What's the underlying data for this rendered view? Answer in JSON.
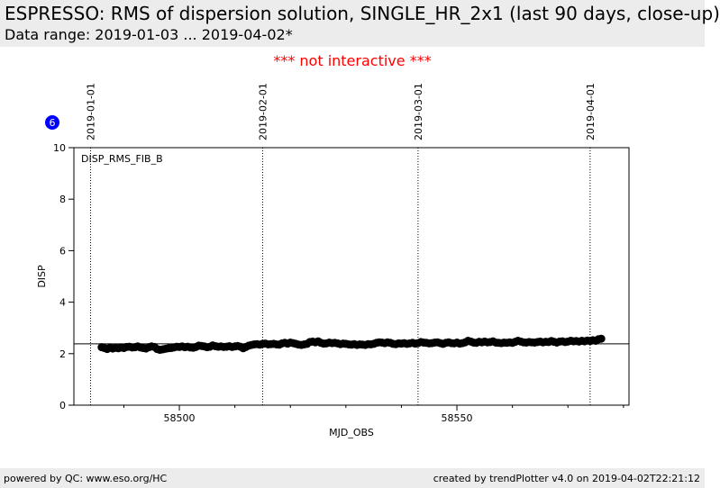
{
  "header": {
    "title": "ESPRESSO: RMS of dispersion solution, SINGLE_HR_2x1 (last 90 days, close-up)",
    "subtitle": "Data range: 2019-01-03 ... 2019-04-02*"
  },
  "notice": "*** not interactive ***",
  "badge": {
    "value": "6",
    "color": "#0000ff"
  },
  "footer": {
    "left": "powered by QC: www.eso.org/HC",
    "right": "created by trendPlotter v4.0 on 2019-04-02T22:21:12"
  },
  "chart_data": {
    "type": "scatter",
    "series_label": "DISP_RMS_FIB_B",
    "xlabel": "MJD_OBS",
    "ylabel": "DISP",
    "xlim": [
      58481,
      58581
    ],
    "ylim": [
      0,
      10
    ],
    "x_ticks": [
      58500,
      58550
    ],
    "x_minor_ticks": [
      58490,
      58510,
      58520,
      58530,
      58540,
      58560,
      58570,
      58580
    ],
    "y_ticks": [
      0,
      2,
      4,
      6,
      8,
      10
    ],
    "reference_line": 2.38,
    "date_markers": [
      {
        "label": "2019-01-01",
        "mjd": 58484
      },
      {
        "label": "2019-02-01",
        "mjd": 58515
      },
      {
        "label": "2019-03-01",
        "mjd": 58543
      },
      {
        "label": "2019-04-01",
        "mjd": 58574
      }
    ],
    "marker_color": "#000000",
    "points": [
      [
        58486.0,
        2.25
      ],
      [
        58486.5,
        2.22
      ],
      [
        58487.0,
        2.18
      ],
      [
        58487.5,
        2.24
      ],
      [
        58488.0,
        2.2
      ],
      [
        58488.5,
        2.23
      ],
      [
        58489.0,
        2.21
      ],
      [
        58489.5,
        2.24
      ],
      [
        58490.0,
        2.22
      ],
      [
        58490.5,
        2.26
      ],
      [
        58491.0,
        2.27
      ],
      [
        58491.5,
        2.24
      ],
      [
        58492.0,
        2.25
      ],
      [
        58492.5,
        2.28
      ],
      [
        58493.0,
        2.24
      ],
      [
        58493.5,
        2.22
      ],
      [
        58494.0,
        2.2
      ],
      [
        58494.5,
        2.25
      ],
      [
        58495.0,
        2.28
      ],
      [
        58495.5,
        2.26
      ],
      [
        58496.0,
        2.18
      ],
      [
        58496.5,
        2.15
      ],
      [
        58497.0,
        2.17
      ],
      [
        58497.5,
        2.19
      ],
      [
        58498.0,
        2.21
      ],
      [
        58498.5,
        2.22
      ],
      [
        58499.0,
        2.24
      ],
      [
        58499.5,
        2.27
      ],
      [
        58500.0,
        2.26
      ],
      [
        58500.5,
        2.28
      ],
      [
        58501.0,
        2.25
      ],
      [
        58501.5,
        2.27
      ],
      [
        58502.0,
        2.24
      ],
      [
        58502.5,
        2.23
      ],
      [
        58503.0,
        2.26
      ],
      [
        58503.5,
        2.31
      ],
      [
        58504.0,
        2.3
      ],
      [
        58504.5,
        2.28
      ],
      [
        58505.0,
        2.25
      ],
      [
        58505.5,
        2.27
      ],
      [
        58506.0,
        2.32
      ],
      [
        58506.5,
        2.29
      ],
      [
        58507.0,
        2.27
      ],
      [
        58507.5,
        2.28
      ],
      [
        58508.0,
        2.26
      ],
      [
        58508.5,
        2.27
      ],
      [
        58509.0,
        2.29
      ],
      [
        58509.5,
        2.26
      ],
      [
        58510.0,
        2.28
      ],
      [
        58510.5,
        2.3
      ],
      [
        58511.0,
        2.27
      ],
      [
        58511.5,
        2.21
      ],
      [
        58512.0,
        2.26
      ],
      [
        58512.5,
        2.31
      ],
      [
        58513.0,
        2.34
      ],
      [
        58513.5,
        2.36
      ],
      [
        58514.0,
        2.37
      ],
      [
        58514.5,
        2.35
      ],
      [
        58515.0,
        2.38
      ],
      [
        58515.5,
        2.39
      ],
      [
        58516.0,
        2.36
      ],
      [
        58516.5,
        2.37
      ],
      [
        58517.0,
        2.38
      ],
      [
        58517.5,
        2.36
      ],
      [
        58518.0,
        2.35
      ],
      [
        58518.5,
        2.4
      ],
      [
        58519.0,
        2.42
      ],
      [
        58519.5,
        2.39
      ],
      [
        58520.0,
        2.43
      ],
      [
        58520.5,
        2.41
      ],
      [
        58521.0,
        2.38
      ],
      [
        58521.5,
        2.35
      ],
      [
        58522.0,
        2.34
      ],
      [
        58522.5,
        2.36
      ],
      [
        58523.0,
        2.38
      ],
      [
        58523.5,
        2.45
      ],
      [
        58524.0,
        2.47
      ],
      [
        58524.5,
        2.44
      ],
      [
        58525.0,
        2.48
      ],
      [
        58525.5,
        2.42
      ],
      [
        58526.0,
        2.39
      ],
      [
        58526.5,
        2.4
      ],
      [
        58527.0,
        2.43
      ],
      [
        58527.5,
        2.41
      ],
      [
        58528.0,
        2.42
      ],
      [
        58528.5,
        2.4
      ],
      [
        58529.0,
        2.37
      ],
      [
        58529.5,
        2.39
      ],
      [
        58530.0,
        2.38
      ],
      [
        58530.5,
        2.36
      ],
      [
        58531.0,
        2.35
      ],
      [
        58531.5,
        2.37
      ],
      [
        58532.0,
        2.34
      ],
      [
        58532.5,
        2.36
      ],
      [
        58533.0,
        2.35
      ],
      [
        58533.5,
        2.34
      ],
      [
        58534.0,
        2.37
      ],
      [
        58534.5,
        2.36
      ],
      [
        58535.0,
        2.38
      ],
      [
        58535.5,
        2.42
      ],
      [
        58536.0,
        2.44
      ],
      [
        58536.5,
        2.43
      ],
      [
        58537.0,
        2.41
      ],
      [
        58537.5,
        2.44
      ],
      [
        58538.0,
        2.42
      ],
      [
        58538.5,
        2.38
      ],
      [
        58539.0,
        2.37
      ],
      [
        58539.5,
        2.4
      ],
      [
        58540.0,
        2.39
      ],
      [
        58540.5,
        2.41
      ],
      [
        58541.0,
        2.38
      ],
      [
        58541.5,
        2.4
      ],
      [
        58542.0,
        2.42
      ],
      [
        58542.5,
        2.39
      ],
      [
        58543.0,
        2.41
      ],
      [
        58543.5,
        2.45
      ],
      [
        58544.0,
        2.43
      ],
      [
        58544.5,
        2.42
      ],
      [
        58545.0,
        2.4
      ],
      [
        58545.5,
        2.41
      ],
      [
        58546.0,
        2.43
      ],
      [
        58546.5,
        2.44
      ],
      [
        58547.0,
        2.41
      ],
      [
        58547.5,
        2.38
      ],
      [
        58548.0,
        2.42
      ],
      [
        58548.5,
        2.44
      ],
      [
        58549.0,
        2.41
      ],
      [
        58549.5,
        2.4
      ],
      [
        58550.0,
        2.43
      ],
      [
        58550.5,
        2.39
      ],
      [
        58551.0,
        2.41
      ],
      [
        58551.5,
        2.44
      ],
      [
        58552.0,
        2.5
      ],
      [
        58552.5,
        2.47
      ],
      [
        58553.0,
        2.43
      ],
      [
        58553.5,
        2.42
      ],
      [
        58554.0,
        2.46
      ],
      [
        58554.5,
        2.44
      ],
      [
        58555.0,
        2.47
      ],
      [
        58555.5,
        2.44
      ],
      [
        58556.0,
        2.45
      ],
      [
        58556.5,
        2.48
      ],
      [
        58557.0,
        2.43
      ],
      [
        58557.5,
        2.42
      ],
      [
        58558.0,
        2.41
      ],
      [
        58558.5,
        2.43
      ],
      [
        58559.0,
        2.42
      ],
      [
        58559.5,
        2.44
      ],
      [
        58560.0,
        2.42
      ],
      [
        58560.5,
        2.46
      ],
      [
        58561.0,
        2.5
      ],
      [
        58561.5,
        2.47
      ],
      [
        58562.0,
        2.44
      ],
      [
        58562.5,
        2.43
      ],
      [
        58563.0,
        2.45
      ],
      [
        58563.5,
        2.44
      ],
      [
        58564.0,
        2.43
      ],
      [
        58564.5,
        2.45
      ],
      [
        58565.0,
        2.47
      ],
      [
        58565.5,
        2.44
      ],
      [
        58566.0,
        2.46
      ],
      [
        58566.5,
        2.45
      ],
      [
        58567.0,
        2.49
      ],
      [
        58567.5,
        2.46
      ],
      [
        58568.0,
        2.43
      ],
      [
        58568.5,
        2.47
      ],
      [
        58569.0,
        2.48
      ],
      [
        58569.5,
        2.45
      ],
      [
        58570.0,
        2.47
      ],
      [
        58570.5,
        2.5
      ],
      [
        58571.0,
        2.48
      ],
      [
        58571.5,
        2.49
      ],
      [
        58572.0,
        2.47
      ],
      [
        58572.5,
        2.5
      ],
      [
        58573.0,
        2.48
      ],
      [
        58573.5,
        2.51
      ],
      [
        58574.0,
        2.49
      ],
      [
        58574.5,
        2.52
      ],
      [
        58575.0,
        2.5
      ],
      [
        58575.5,
        2.56
      ],
      [
        58576.0,
        2.58
      ]
    ]
  }
}
